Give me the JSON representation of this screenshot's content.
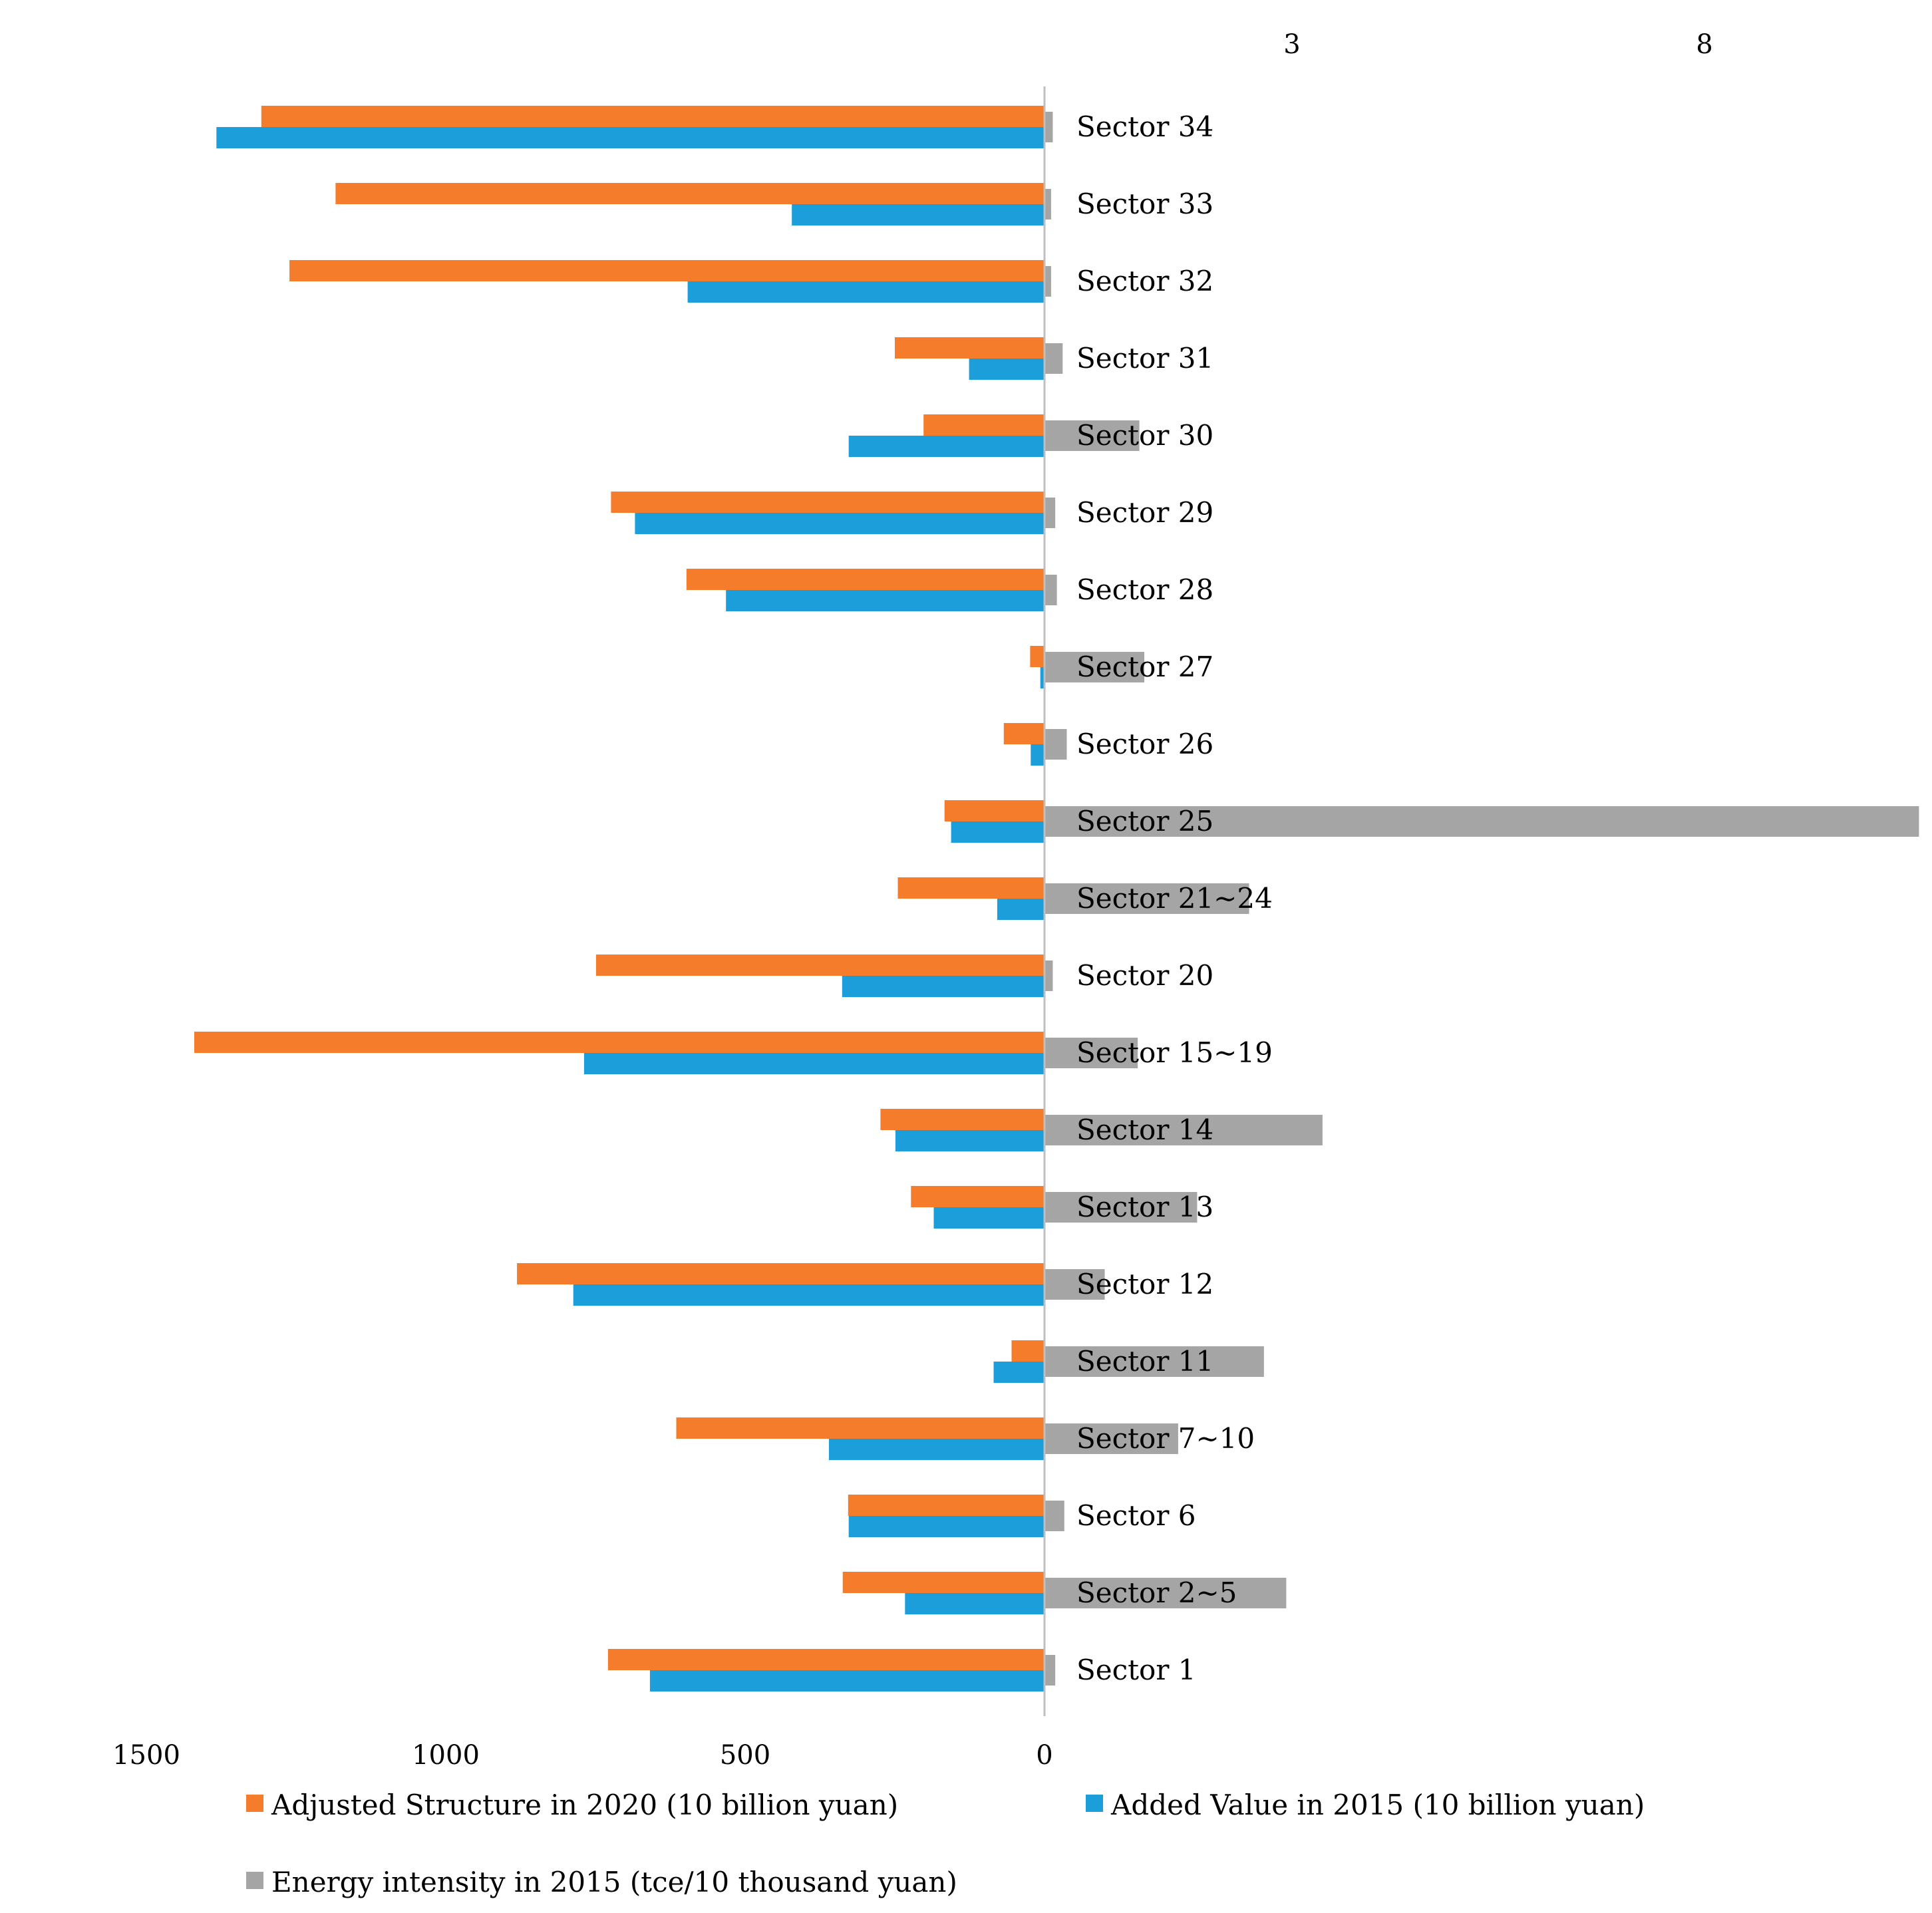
{
  "chart_data": {
    "type": "bar",
    "orientation": "horizontal",
    "categories": [
      "Sector 34",
      "Sector 33",
      "Sector 32",
      "Sector 31",
      "Sector 30",
      "Sector 29",
      "Sector 28",
      "Sector 27",
      "Sector 26",
      "Sector 25",
      "Sector 21~24",
      "Sector 20",
      "Sector 15~19",
      "Sector 14",
      "Sector 13",
      "Sector 12",
      "Sector 11",
      "Sector 7~10",
      "Sector 6",
      "Sector 2~5",
      "Sector 1"
    ],
    "series": [
      {
        "name": "Adjusted Structure in 2020 (10 billion yuan)",
        "color": "#F47C2A",
        "axis": "left",
        "values": [
          1308,
          1184,
          1261,
          250,
          202,
          724,
          598,
          24,
          68,
          167,
          245,
          749,
          1420,
          274,
          223,
          881,
          55,
          615,
          328,
          337,
          729
        ]
      },
      {
        "name": "Added Value in 2015 (10 billion yuan)",
        "color": "#1B9ED9",
        "axis": "left",
        "values": [
          1383,
          422,
          596,
          126,
          327,
          684,
          532,
          7,
          23,
          156,
          79,
          338,
          769,
          249,
          185,
          787,
          85,
          360,
          327,
          233,
          659
        ]
      },
      {
        "name": "Energy intensity in 2015 (tce/10 thousand yuan)",
        "color": "#A5A5A5",
        "axis": "right",
        "values": [
          0.1,
          0.08,
          0.08,
          0.22,
          1.15,
          0.13,
          0.15,
          1.21,
          0.27,
          10.6,
          2.48,
          0.1,
          1.13,
          3.37,
          1.85,
          0.73,
          2.66,
          1.62,
          0.24,
          2.93,
          0.13
        ]
      }
    ],
    "primary_axis": {
      "ticks": [
        1500,
        1000,
        500,
        0
      ],
      "range": [
        1500,
        0
      ],
      "direction": "reversed"
    },
    "secondary_axis": {
      "ticks": [
        3,
        8
      ],
      "range": [
        0,
        11
      ]
    },
    "legend": {
      "position": "bottom"
    },
    "grid": false
  }
}
